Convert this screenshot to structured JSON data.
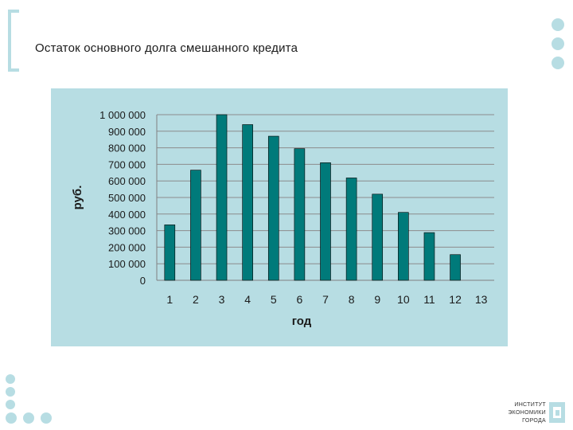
{
  "slide": {
    "title": "Остаток основного долга смешанного кредита",
    "logo_lines": [
      "ИНСТИТУТ",
      "ЭКОНОМИКИ",
      "ГОРОДА"
    ]
  },
  "chart_data": {
    "type": "bar",
    "title": "",
    "xlabel": "год",
    "ylabel": "руб.",
    "categories": [
      "1",
      "2",
      "3",
      "4",
      "5",
      "6",
      "7",
      "8",
      "9",
      "10",
      "11",
      "12",
      "13"
    ],
    "values": [
      335000,
      665000,
      1000000,
      940000,
      870000,
      795000,
      710000,
      618000,
      520000,
      410000,
      288000,
      155000,
      0
    ],
    "ylim": [
      0,
      1000000
    ],
    "yticks": [
      0,
      100000,
      200000,
      300000,
      400000,
      500000,
      600000,
      700000,
      800000,
      900000,
      1000000
    ],
    "ytick_labels": [
      "0",
      "100 000",
      "200 000",
      "300 000",
      "400 000",
      "500 000",
      "600 000",
      "700 000",
      "800 000",
      "900 000",
      "1 000 000"
    ],
    "grid": true,
    "colors": {
      "bar": "#007a7a",
      "bar_edge": "#000000",
      "panel": "#b7dde3",
      "grid": "#8c8c8c"
    }
  }
}
